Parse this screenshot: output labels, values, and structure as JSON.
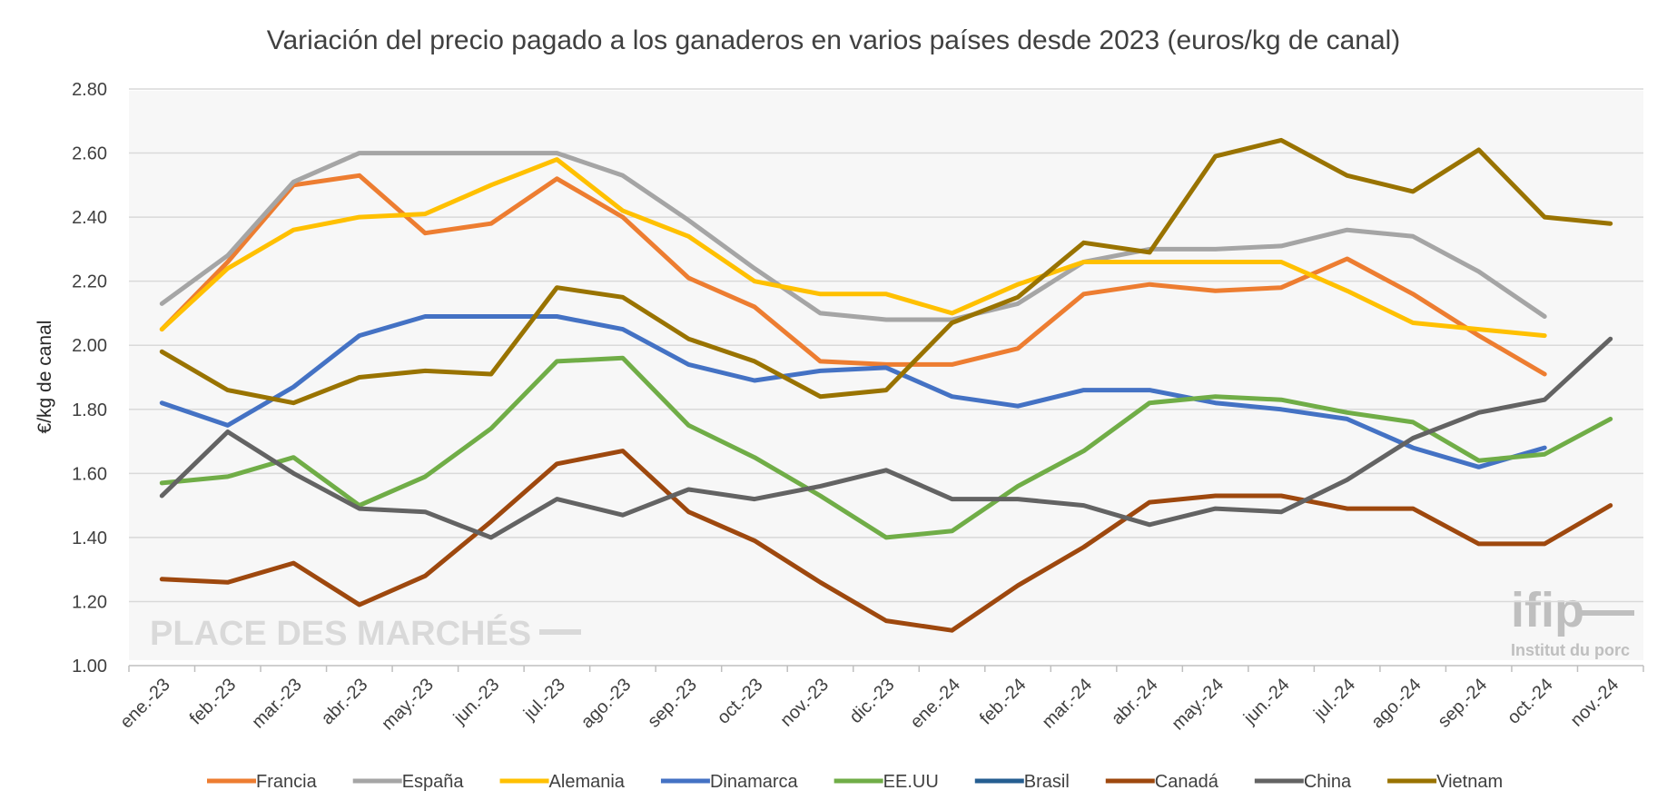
{
  "chart_data": {
    "type": "line",
    "title": "Variación del precio pagado a los ganaderos en varios países desde 2023 (euros/kg de canal)",
    "ylabel": "€/kg de canal",
    "xlabel": "",
    "ylim": [
      1.0,
      2.8
    ],
    "ytick_step": 0.2,
    "grid": true,
    "legend_position": "bottom",
    "categories": [
      "ene.-23",
      "feb.-23",
      "mar.-23",
      "abr.-23",
      "may.-23",
      "jun.-23",
      "jul.-23",
      "ago.-23",
      "sep.-23",
      "oct.-23",
      "nov.-23",
      "dic.-23",
      "ene.-24",
      "feb.-24",
      "mar.-24",
      "abr.-24",
      "may.-24",
      "jun.-24",
      "jul.-24",
      "ago.-24",
      "sep.-24",
      "oct.-24",
      "nov.-24"
    ],
    "series": [
      {
        "name": "Francia",
        "color": "#ED7D31",
        "values": [
          2.05,
          2.26,
          2.5,
          2.53,
          2.35,
          2.38,
          2.52,
          2.4,
          2.21,
          2.12,
          1.95,
          1.94,
          1.94,
          1.99,
          2.16,
          2.19,
          2.17,
          2.18,
          2.27,
          2.16,
          2.03,
          1.91,
          null
        ]
      },
      {
        "name": "España",
        "color": "#A5A5A5",
        "values": [
          2.13,
          2.28,
          2.51,
          2.6,
          2.6,
          2.6,
          2.6,
          2.53,
          2.39,
          2.24,
          2.1,
          2.08,
          2.08,
          2.13,
          2.26,
          2.3,
          2.3,
          2.31,
          2.36,
          2.34,
          2.23,
          2.09,
          null
        ]
      },
      {
        "name": "Alemania",
        "color": "#FFC000",
        "values": [
          2.05,
          2.24,
          2.36,
          2.4,
          2.41,
          2.5,
          2.58,
          2.42,
          2.34,
          2.2,
          2.16,
          2.16,
          2.1,
          2.19,
          2.26,
          2.26,
          2.26,
          2.26,
          2.17,
          2.07,
          2.05,
          2.03,
          null
        ]
      },
      {
        "name": "Dinamarca",
        "color": "#4472C4",
        "values": [
          1.82,
          1.75,
          1.87,
          2.03,
          2.09,
          2.09,
          2.09,
          2.05,
          1.94,
          1.89,
          1.92,
          1.93,
          1.84,
          1.81,
          1.86,
          1.86,
          1.82,
          1.8,
          1.77,
          1.68,
          1.62,
          1.68,
          null
        ]
      },
      {
        "name": "EE.UU",
        "color": "#70AD47",
        "values": [
          1.57,
          1.59,
          1.65,
          1.5,
          1.59,
          1.74,
          1.95,
          1.96,
          1.75,
          1.65,
          1.53,
          1.4,
          1.42,
          1.56,
          1.67,
          1.82,
          1.84,
          1.83,
          1.79,
          1.76,
          1.64,
          1.66,
          1.77
        ]
      },
      {
        "name": "Brasil",
        "color": "#255E91",
        "values": [
          null,
          null,
          null,
          null,
          null,
          null,
          null,
          null,
          null,
          null,
          null,
          null,
          null,
          null,
          null,
          null,
          null,
          null,
          null,
          null,
          null,
          null,
          null
        ]
      },
      {
        "name": "Canadá",
        "color": "#9E480E",
        "values": [
          1.27,
          1.26,
          1.32,
          1.19,
          1.28,
          1.45,
          1.63,
          1.67,
          1.48,
          1.39,
          1.26,
          1.14,
          1.11,
          1.25,
          1.37,
          1.51,
          1.53,
          1.53,
          1.49,
          1.49,
          1.38,
          1.38,
          1.5
        ]
      },
      {
        "name": "China",
        "color": "#636363",
        "values": [
          1.53,
          1.73,
          1.6,
          1.49,
          1.48,
          1.4,
          1.52,
          1.47,
          1.55,
          1.52,
          1.56,
          1.61,
          1.52,
          1.52,
          1.5,
          1.44,
          1.49,
          1.48,
          1.58,
          1.71,
          1.79,
          1.83,
          2.02
        ]
      },
      {
        "name": "Vietnam",
        "color": "#997300",
        "values": [
          1.98,
          1.86,
          1.82,
          1.9,
          1.92,
          1.91,
          2.18,
          2.15,
          2.02,
          1.95,
          1.84,
          1.86,
          2.07,
          2.15,
          2.32,
          2.29,
          2.59,
          2.64,
          2.53,
          2.48,
          2.61,
          2.4,
          2.38
        ]
      }
    ]
  },
  "watermark": {
    "place_text": "PLACE DES MARCHÉS",
    "ifip_text": "ifip",
    "ifip_sub": "Institut du porc"
  }
}
